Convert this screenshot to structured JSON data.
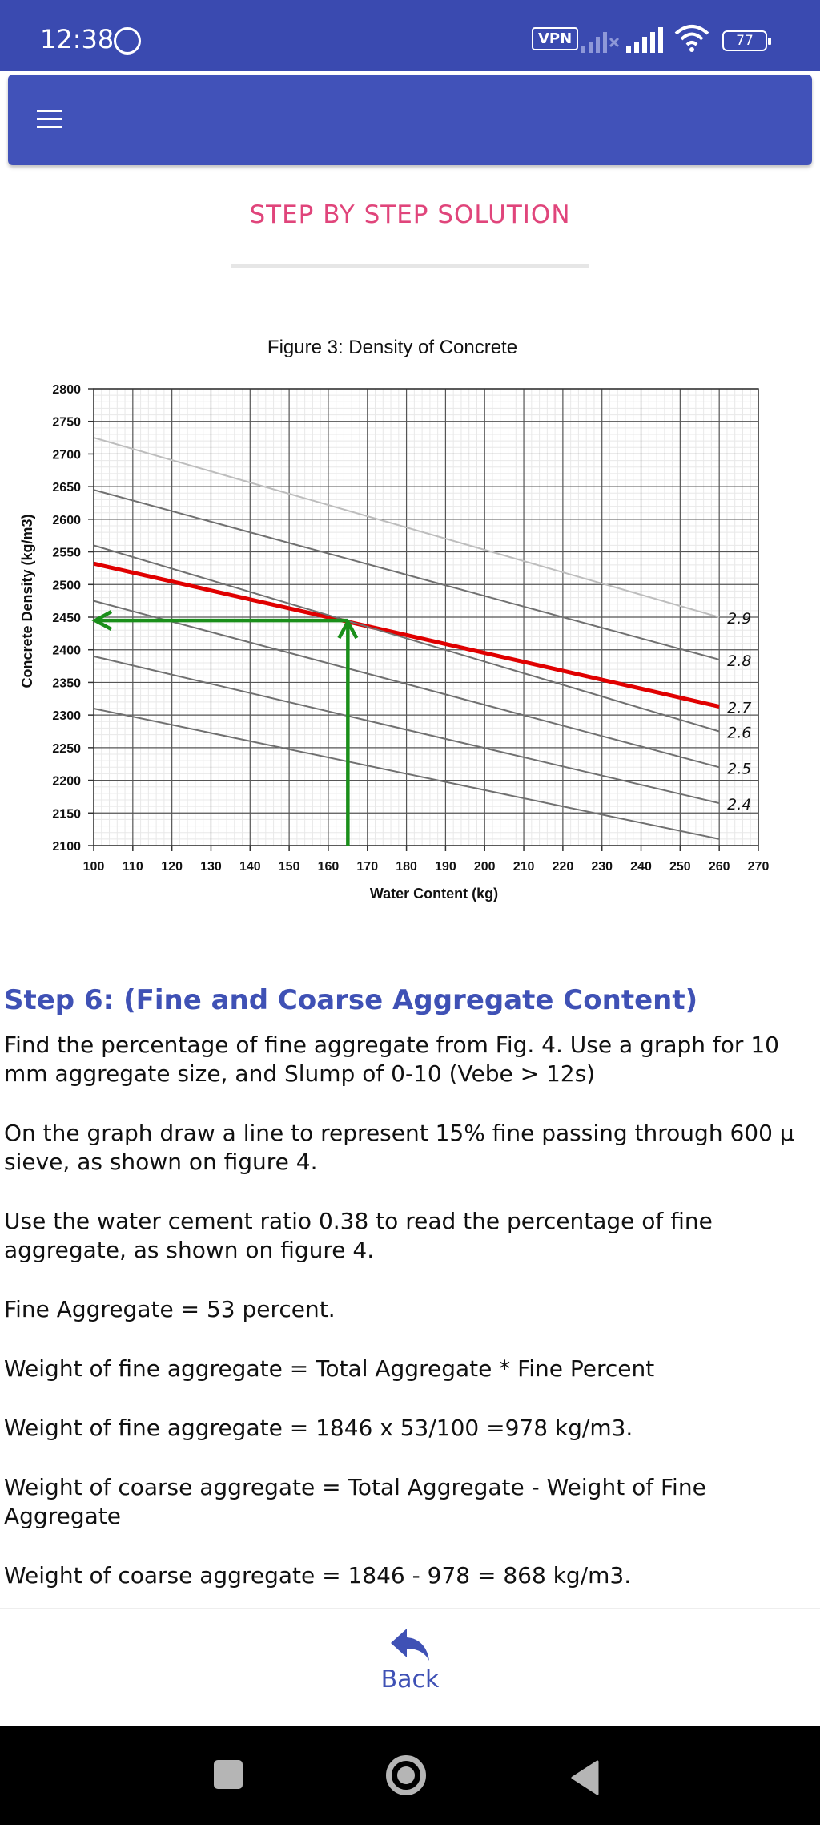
{
  "status_bar": {
    "time": "12:38",
    "vpn": "VPN",
    "battery": "77",
    "whatsapp_icon": "whatsapp-icon",
    "signal_icon": "signal-icon",
    "wifi_icon": "wifi-icon"
  },
  "app_bar": {
    "menu_icon": "menu-icon",
    "color": "#4152b9"
  },
  "page": {
    "title": "STEP BY STEP SOLUTION",
    "title_color": "#e0457b"
  },
  "chart_data": {
    "type": "line",
    "title": "Figure 3: Density of Concrete",
    "xlabel": "Water Content (kg)",
    "ylabel": "Concrete Density (kg/m3)",
    "xlim": [
      100,
      270
    ],
    "ylim": [
      2100,
      2800
    ],
    "xticks": [
      "100",
      "110",
      "120",
      "130",
      "140",
      "150",
      "160",
      "170",
      "180",
      "190",
      "200",
      "210",
      "220",
      "230",
      "240",
      "250",
      "260",
      "270"
    ],
    "yticks": [
      "2100",
      "2150",
      "2200",
      "2250",
      "2300",
      "2350",
      "2400",
      "2450",
      "2500",
      "2550",
      "2600",
      "2650",
      "2700",
      "2750",
      "2800"
    ],
    "grid": true,
    "series": [
      {
        "name": "2.9",
        "color": "#bdbdbd",
        "x": [
          100,
          260
        ],
        "y": [
          2725,
          2450
        ]
      },
      {
        "name": "2.8",
        "color": "#707070",
        "x": [
          100,
          260
        ],
        "y": [
          2645,
          2385
        ]
      },
      {
        "name": "2.7",
        "color": "#e00000",
        "x": [
          100,
          260
        ],
        "y": [
          2532,
          2313
        ]
      },
      {
        "name": "2.6",
        "color": "#707070",
        "x": [
          100,
          260
        ],
        "y": [
          2560,
          2275
        ]
      },
      {
        "name": "2.5",
        "color": "#707070",
        "x": [
          100,
          260
        ],
        "y": [
          2475,
          2220
        ]
      },
      {
        "name": "2.4",
        "color": "#707070",
        "x": [
          100,
          260
        ],
        "y": [
          2390,
          2165
        ]
      },
      {
        "name": "",
        "color": "#707070",
        "x": [
          100,
          260
        ],
        "y": [
          2310,
          2110
        ]
      }
    ],
    "annotations": {
      "color": "#1a8f1a",
      "vertical_x": 165,
      "vertical_from": 2100,
      "vertical_to": 2445,
      "horizontal_y": 2445,
      "horizontal_from": 165,
      "horizontal_to": 100
    }
  },
  "content": {
    "step_heading": "Step 6: (Fine and Coarse Aggregate Content)",
    "paragraphs": [
      "Find the percentage of fine aggregate from Fig. 4. Use a graph for 10 mm aggregate size, and Slump of 0-10 (Vebe > 12s)",
      "On the graph draw a line to represent 15% fine passing through 600 µ sieve, as shown on figure 4.",
      "Use the water cement ratio 0.38 to read the percentage of fine aggregate, as shown on figure 4.",
      "Fine Aggregate = 53 percent.",
      "Weight of fine aggregate = Total Aggregate * Fine Percent",
      "Weight of fine aggregate = 1846 x 53/100 =978 kg/m3.",
      "Weight of coarse aggregate = Total Aggregate - Weight of Fine Aggregate",
      "Weight of coarse aggregate = 1846 - 978 = 868 kg/m3."
    ]
  },
  "footer": {
    "back_label": "Back",
    "back_icon": "reply-arrow-icon",
    "accent": "#3f51b5"
  },
  "nav_bar": {
    "recents_icon": "square-icon",
    "home_icon": "circle-icon",
    "back_icon": "triangle-back-icon"
  }
}
